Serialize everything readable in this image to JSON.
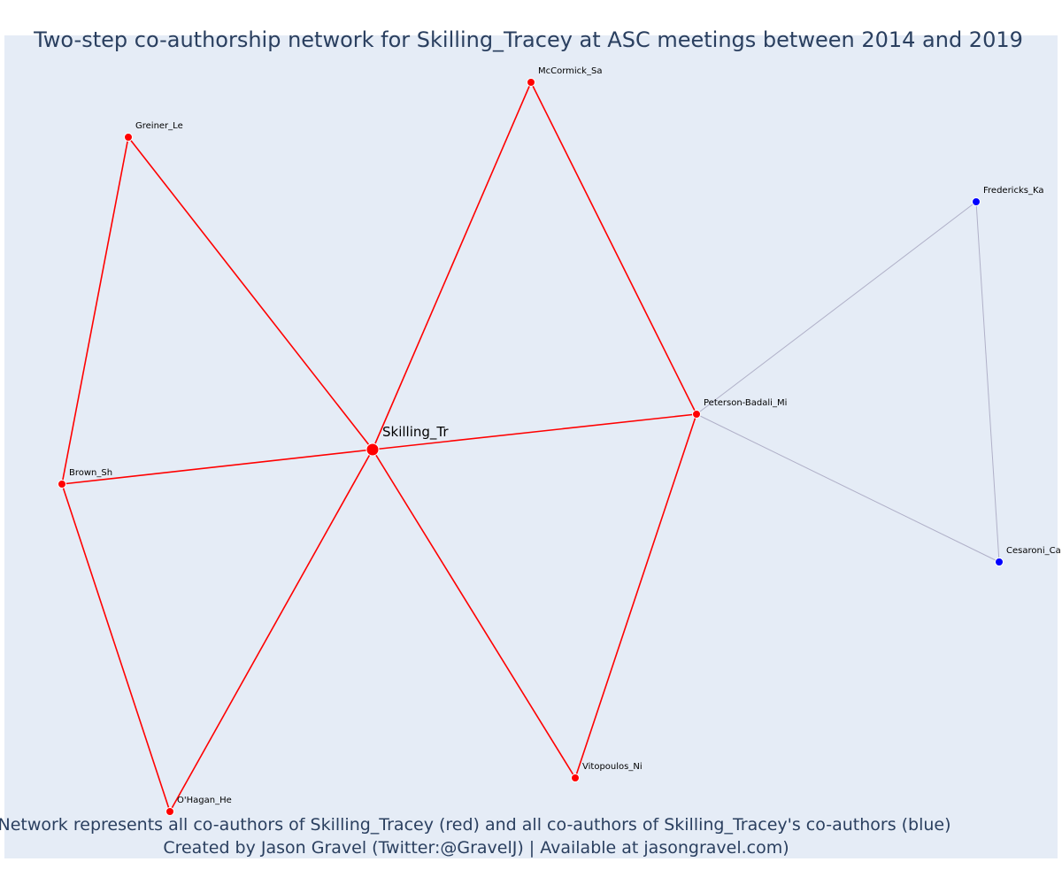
{
  "title": "Two-step co-authorship network for Skilling_Tracey at ASC meetings between 2014 and 2019",
  "annotation": {
    "line1": "Network represents all co-authors of Skilling_Tracey (red) and all co-authors of Skilling_Tracey's co-authors (blue)",
    "line2": "Created by Jason Gravel (Twitter:@GravelJ) | Available at jasongravel.com)"
  },
  "colors": {
    "first_degree": "#ff0000",
    "second_degree": "#0000ff",
    "second_degree_edge": "#b0b0c8",
    "background": "#e5ecf6",
    "text": "#2a3f5f"
  },
  "nodes": [
    {
      "id": "Skilling_Tr",
      "label": "Skilling_Tr",
      "group": "focal"
    },
    {
      "id": "McCormick_Sa",
      "label": "McCormick_Sa",
      "group": "first"
    },
    {
      "id": "Greiner_Le",
      "label": "Greiner_Le",
      "group": "first"
    },
    {
      "id": "Brown_Sh",
      "label": "Brown_Sh",
      "group": "first"
    },
    {
      "id": "O'Hagan_He",
      "label": "O'Hagan_He",
      "group": "first"
    },
    {
      "id": "Vitopoulos_Ni",
      "label": "Vitopoulos_Ni",
      "group": "first"
    },
    {
      "id": "Peterson-Badali_Mi",
      "label": "Peterson-Badali_Mi",
      "group": "first"
    },
    {
      "id": "Fredericks_Ka",
      "label": "Fredericks_Ka",
      "group": "second"
    },
    {
      "id": "Cesaroni_Ca",
      "label": "Cesaroni_Ca",
      "group": "second"
    }
  ],
  "edges": [
    {
      "source": "Skilling_Tr",
      "target": "McCormick_Sa",
      "group": "first"
    },
    {
      "source": "Skilling_Tr",
      "target": "Greiner_Le",
      "group": "first"
    },
    {
      "source": "Skilling_Tr",
      "target": "Brown_Sh",
      "group": "first"
    },
    {
      "source": "Skilling_Tr",
      "target": "O'Hagan_He",
      "group": "first"
    },
    {
      "source": "Skilling_Tr",
      "target": "Vitopoulos_Ni",
      "group": "first"
    },
    {
      "source": "Skilling_Tr",
      "target": "Peterson-Badali_Mi",
      "group": "first"
    },
    {
      "source": "Greiner_Le",
      "target": "Brown_Sh",
      "group": "first"
    },
    {
      "source": "Brown_Sh",
      "target": "O'Hagan_He",
      "group": "first"
    },
    {
      "source": "McCormick_Sa",
      "target": "Peterson-Badali_Mi",
      "group": "first"
    },
    {
      "source": "Peterson-Badali_Mi",
      "target": "Vitopoulos_Ni",
      "group": "first"
    },
    {
      "source": "Peterson-Badali_Mi",
      "target": "Fredericks_Ka",
      "group": "second"
    },
    {
      "source": "Peterson-Badali_Mi",
      "target": "Cesaroni_Ca",
      "group": "second"
    },
    {
      "source": "Fredericks_Ka",
      "target": "Cesaroni_Ca",
      "group": "second"
    }
  ]
}
